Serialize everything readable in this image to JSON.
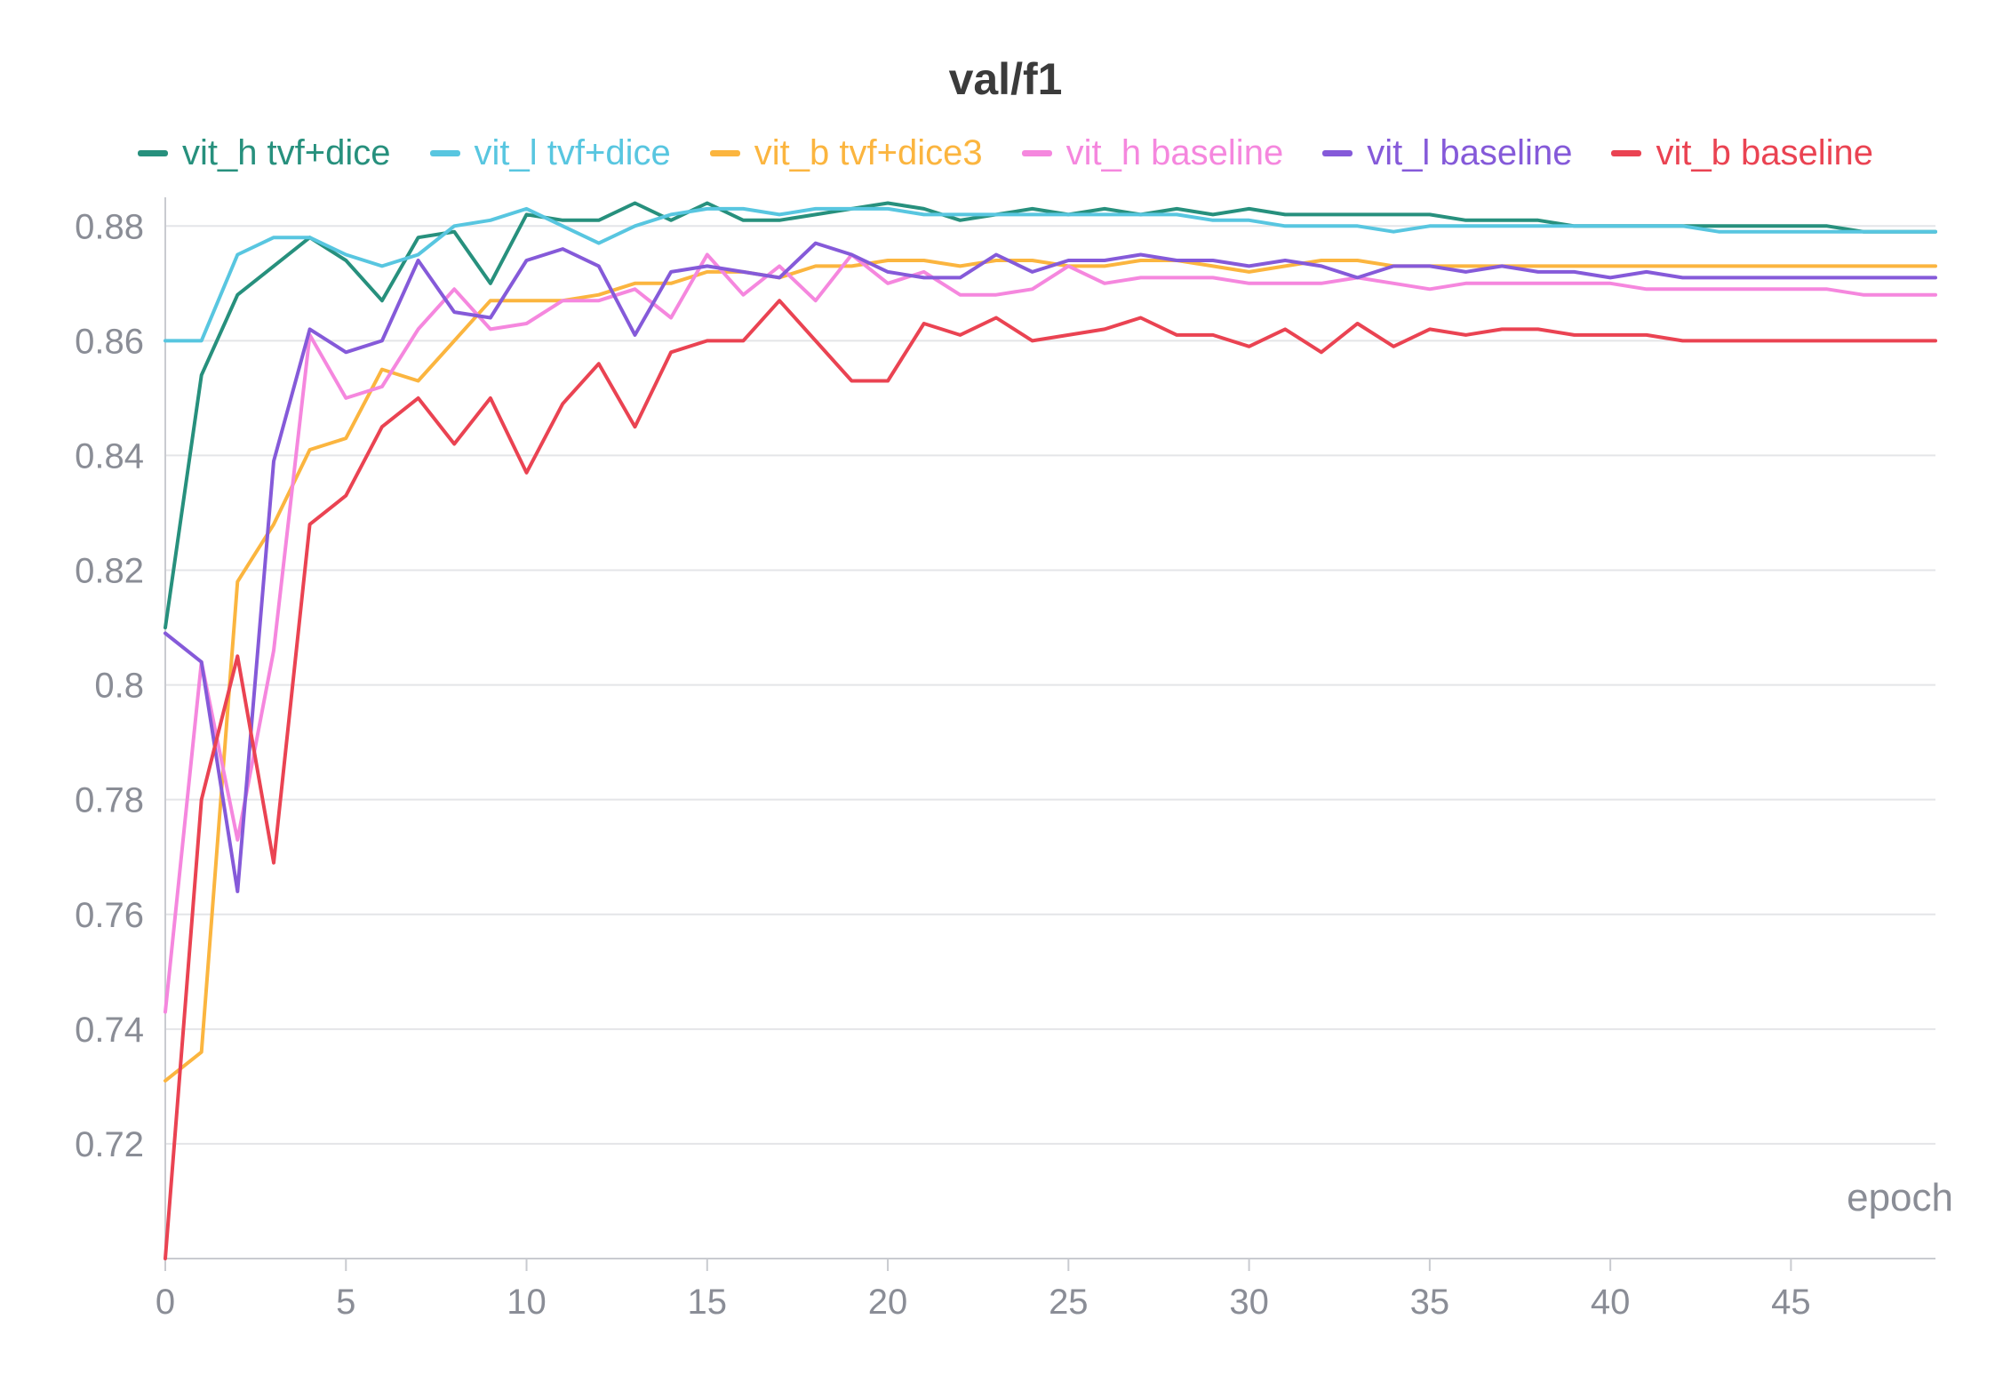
{
  "chart_data": {
    "type": "line",
    "title": "val/f1",
    "xlabel": "epoch",
    "ylabel": "",
    "xlim": [
      0,
      49
    ],
    "ylim": [
      0.7,
      0.885
    ],
    "x_ticks": [
      0,
      5,
      10,
      15,
      20,
      25,
      30,
      35,
      40,
      45
    ],
    "y_ticks": [
      0.72,
      0.74,
      0.76,
      0.78,
      0.8,
      0.82,
      0.84,
      0.86,
      0.88
    ],
    "y_tick_labels": [
      "0.72",
      "0.74",
      "0.76",
      "0.78",
      "0.8",
      "0.82",
      "0.84",
      "0.86",
      "0.88"
    ],
    "grid": true,
    "legend_position": "top",
    "x": [
      0,
      1,
      2,
      3,
      4,
      5,
      6,
      7,
      8,
      9,
      10,
      11,
      12,
      13,
      14,
      15,
      16,
      17,
      18,
      19,
      20,
      21,
      22,
      23,
      24,
      25,
      26,
      27,
      28,
      29,
      30,
      31,
      32,
      33,
      34,
      35,
      36,
      37,
      38,
      39,
      40,
      41,
      42,
      43,
      44,
      45,
      46,
      47,
      48,
      49
    ],
    "series": [
      {
        "name": "vit_h tvf+dice",
        "color": "#27907d",
        "values": [
          0.81,
          0.854,
          0.868,
          0.873,
          0.878,
          0.874,
          0.867,
          0.878,
          0.879,
          0.87,
          0.882,
          0.881,
          0.881,
          0.884,
          0.881,
          0.884,
          0.881,
          0.881,
          0.882,
          0.883,
          0.884,
          0.883,
          0.881,
          0.882,
          0.883,
          0.882,
          0.883,
          0.882,
          0.883,
          0.882,
          0.883,
          0.882,
          0.882,
          0.882,
          0.882,
          0.882,
          0.881,
          0.881,
          0.881,
          0.88,
          0.88,
          0.88,
          0.88,
          0.88,
          0.88,
          0.88,
          0.88,
          0.879,
          0.879,
          0.879
        ]
      },
      {
        "name": "vit_l tvf+dice",
        "color": "#58c6e0",
        "values": [
          0.86,
          0.86,
          0.875,
          0.878,
          0.878,
          0.875,
          0.873,
          0.875,
          0.88,
          0.881,
          0.883,
          0.88,
          0.877,
          0.88,
          0.882,
          0.883,
          0.883,
          0.882,
          0.883,
          0.883,
          0.883,
          0.882,
          0.882,
          0.882,
          0.882,
          0.882,
          0.882,
          0.882,
          0.882,
          0.881,
          0.881,
          0.88,
          0.88,
          0.88,
          0.879,
          0.88,
          0.88,
          0.88,
          0.88,
          0.88,
          0.88,
          0.88,
          0.88,
          0.879,
          0.879,
          0.879,
          0.879,
          0.879,
          0.879,
          0.879
        ]
      },
      {
        "name": "vit_b tvf+dice3",
        "color": "#fbb53f",
        "values": [
          0.731,
          0.736,
          0.818,
          0.828,
          0.841,
          0.843,
          0.855,
          0.853,
          0.86,
          0.867,
          0.867,
          0.867,
          0.868,
          0.87,
          0.87,
          0.872,
          0.872,
          0.871,
          0.873,
          0.873,
          0.874,
          0.874,
          0.873,
          0.874,
          0.874,
          0.873,
          0.873,
          0.874,
          0.874,
          0.873,
          0.872,
          0.873,
          0.874,
          0.874,
          0.873,
          0.873,
          0.873,
          0.873,
          0.873,
          0.873,
          0.873,
          0.873,
          0.873,
          0.873,
          0.873,
          0.873,
          0.873,
          0.873,
          0.873,
          0.873
        ]
      },
      {
        "name": "vit_h baseline",
        "color": "#f587de",
        "values": [
          0.743,
          0.804,
          0.773,
          0.806,
          0.861,
          0.85,
          0.852,
          0.862,
          0.869,
          0.862,
          0.863,
          0.867,
          0.867,
          0.869,
          0.864,
          0.875,
          0.868,
          0.873,
          0.867,
          0.875,
          0.87,
          0.872,
          0.868,
          0.868,
          0.869,
          0.873,
          0.87,
          0.871,
          0.871,
          0.871,
          0.87,
          0.87,
          0.87,
          0.871,
          0.87,
          0.869,
          0.87,
          0.87,
          0.87,
          0.87,
          0.87,
          0.869,
          0.869,
          0.869,
          0.869,
          0.869,
          0.869,
          0.868,
          0.868,
          0.868
        ]
      },
      {
        "name": "vit_l baseline",
        "color": "#855ad9",
        "values": [
          0.809,
          0.804,
          0.764,
          0.839,
          0.862,
          0.858,
          0.86,
          0.874,
          0.865,
          0.864,
          0.874,
          0.876,
          0.873,
          0.861,
          0.872,
          0.873,
          0.872,
          0.871,
          0.877,
          0.875,
          0.872,
          0.871,
          0.871,
          0.875,
          0.872,
          0.874,
          0.874,
          0.875,
          0.874,
          0.874,
          0.873,
          0.874,
          0.873,
          0.871,
          0.873,
          0.873,
          0.872,
          0.873,
          0.872,
          0.872,
          0.871,
          0.872,
          0.871,
          0.871,
          0.871,
          0.871,
          0.871,
          0.871,
          0.871,
          0.871
        ]
      },
      {
        "name": "vit_b baseline",
        "color": "#ea4352",
        "values": [
          0.7,
          0.78,
          0.805,
          0.769,
          0.828,
          0.833,
          0.845,
          0.85,
          0.842,
          0.85,
          0.837,
          0.849,
          0.856,
          0.845,
          0.858,
          0.86,
          0.86,
          0.867,
          0.86,
          0.853,
          0.853,
          0.863,
          0.861,
          0.864,
          0.86,
          0.861,
          0.862,
          0.864,
          0.861,
          0.861,
          0.859,
          0.862,
          0.858,
          0.863,
          0.859,
          0.862,
          0.861,
          0.862,
          0.862,
          0.861,
          0.861,
          0.861,
          0.86,
          0.86,
          0.86,
          0.86,
          0.86,
          0.86,
          0.86,
          0.86
        ]
      }
    ]
  }
}
